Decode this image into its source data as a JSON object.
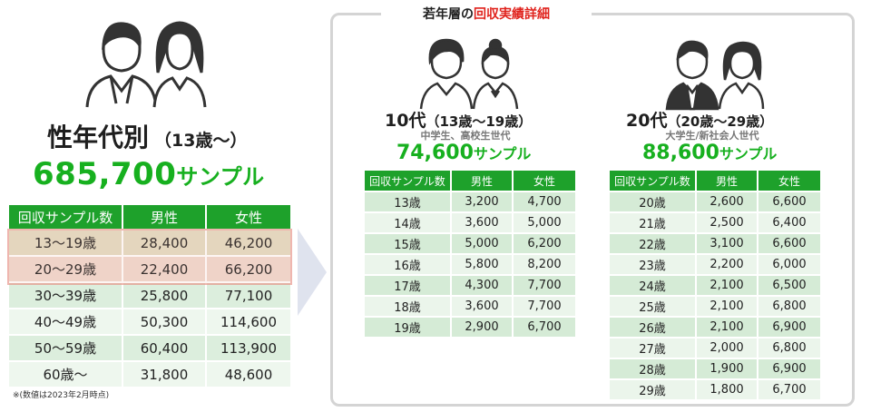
{
  "left": {
    "title": "性年代別",
    "title_sub": "（13歳〜）",
    "total_number": "685,700",
    "total_unit": "サンプル",
    "table": {
      "headers": [
        "回収サンプル数",
        "男性",
        "女性"
      ],
      "rows": [
        [
          "13〜19歳",
          "28,400",
          "46,200"
        ],
        [
          "20〜29歳",
          "22,400",
          "66,200"
        ],
        [
          "30〜39歳",
          "25,800",
          "77,100"
        ],
        [
          "40〜49歳",
          "50,300",
          "114,600"
        ],
        [
          "50〜59歳",
          "60,400",
          "113,900"
        ],
        [
          "60歳〜",
          "31,800",
          "48,600"
        ]
      ]
    },
    "footnote": "※(数値は2023年2月時点)"
  },
  "panel": {
    "title_prefix": "若年層の",
    "title_highlight": "回収実績詳細"
  },
  "teens": {
    "title": "10代",
    "title_sub": "（13歳〜19歳）",
    "subtitle": "中学生、高校生世代",
    "total_number": "74,600",
    "total_unit": "サンプル",
    "table": {
      "headers": [
        "回収サンプル数",
        "男性",
        "女性"
      ],
      "rows": [
        [
          "13歳",
          "3,200",
          "4,700"
        ],
        [
          "14歳",
          "3,600",
          "5,000"
        ],
        [
          "15歳",
          "5,000",
          "6,200"
        ],
        [
          "16歳",
          "5,800",
          "8,200"
        ],
        [
          "17歳",
          "4,300",
          "7,700"
        ],
        [
          "18歳",
          "3,600",
          "7,700"
        ],
        [
          "19歳",
          "2,900",
          "6,700"
        ]
      ]
    }
  },
  "twenties": {
    "title": "20代",
    "title_sub": "（20歳〜29歳）",
    "subtitle": "大学生/新社会人世代",
    "total_number": "88,600",
    "total_unit": "サンプル",
    "table": {
      "headers": [
        "回収サンプル数",
        "男性",
        "女性"
      ],
      "rows": [
        [
          "20歳",
          "2,600",
          "6,600"
        ],
        [
          "21歳",
          "2,500",
          "6,400"
        ],
        [
          "22歳",
          "3,100",
          "6,600"
        ],
        [
          "23歳",
          "2,200",
          "6,000"
        ],
        [
          "24歳",
          "2,100",
          "6,500"
        ],
        [
          "25歳",
          "2,100",
          "6,800"
        ],
        [
          "26歳",
          "2,100",
          "6,900"
        ],
        [
          "27歳",
          "2,000",
          "6,800"
        ],
        [
          "28歳",
          "1,900",
          "6,900"
        ],
        [
          "29歳",
          "1,800",
          "6,700"
        ]
      ]
    }
  },
  "colors": {
    "accent_green": "#17b01f",
    "header_green": "#1ea12b",
    "highlight_red": "#e0231d"
  },
  "icons": [
    "man-icon",
    "woman-icon",
    "boy-icon",
    "girl-icon",
    "businessman-icon",
    "businesswoman-icon",
    "arrow-right-icon"
  ]
}
